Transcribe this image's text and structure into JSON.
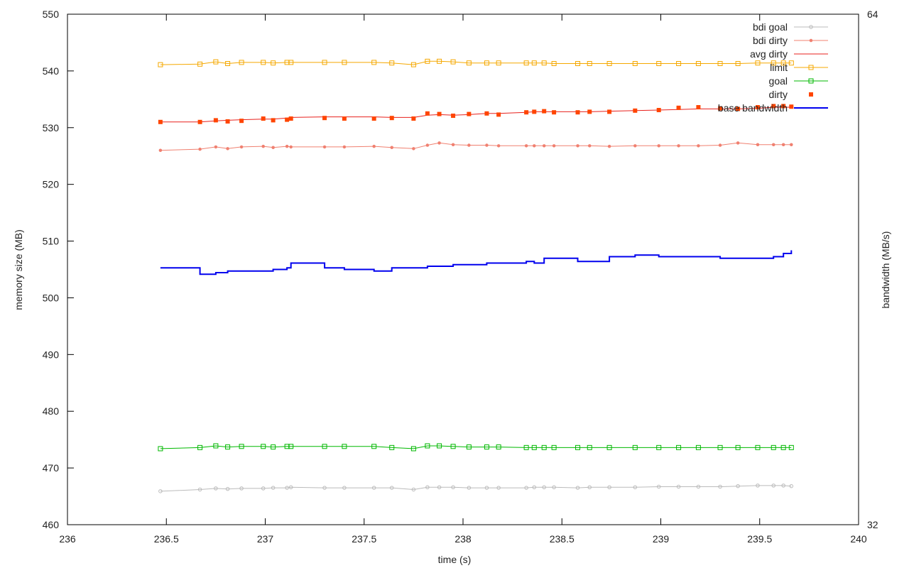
{
  "chart_data": {
    "type": "line",
    "xlabel": "time (s)",
    "ylabel": "memory size (MB)",
    "y2label": "bandwidth (MB/s)",
    "xlim": [
      236,
      240
    ],
    "ylim": [
      460,
      550
    ],
    "y2lim": [
      32,
      64
    ],
    "xticks": [
      "236",
      "236.5",
      "237",
      "237.5",
      "238",
      "238.5",
      "239",
      "239.5",
      "240"
    ],
    "yticks": [
      "460",
      "470",
      "480",
      "490",
      "500",
      "510",
      "520",
      "530",
      "540",
      "550"
    ],
    "y2ticks": [
      "32",
      "64"
    ],
    "grid": false,
    "legend_position": "top-right",
    "series": [
      {
        "name": "bdi goal",
        "color": "#bbbbbb",
        "marker": "circle-open",
        "x": [
          236.47,
          236.67,
          236.75,
          236.81,
          236.88,
          236.99,
          237.04,
          237.11,
          237.13,
          237.3,
          237.4,
          237.55,
          237.64,
          237.75,
          237.82,
          237.88,
          237.95,
          238.03,
          238.12,
          238.18,
          238.32,
          238.36,
          238.41,
          238.46,
          238.58,
          238.64,
          238.74,
          238.87,
          238.99,
          239.09,
          239.19,
          239.3,
          239.39,
          239.49,
          239.57,
          239.62,
          239.66
        ],
        "values": [
          465.9,
          466.2,
          466.4,
          466.3,
          466.4,
          466.4,
          466.5,
          466.5,
          466.6,
          466.5,
          466.5,
          466.5,
          466.5,
          466.2,
          466.6,
          466.6,
          466.6,
          466.5,
          466.5,
          466.5,
          466.5,
          466.6,
          466.6,
          466.6,
          466.5,
          466.6,
          466.6,
          466.6,
          466.7,
          466.7,
          466.7,
          466.7,
          466.8,
          466.9,
          466.9,
          466.9,
          466.8
        ]
      },
      {
        "name": "bdi dirty",
        "color": "#f08070",
        "marker": "circle-filled",
        "x": [
          236.47,
          236.67,
          236.75,
          236.81,
          236.88,
          236.99,
          237.04,
          237.11,
          237.13,
          237.3,
          237.4,
          237.55,
          237.64,
          237.75,
          237.82,
          237.88,
          237.95,
          238.03,
          238.12,
          238.18,
          238.32,
          238.36,
          238.41,
          238.46,
          238.58,
          238.64,
          238.74,
          238.87,
          238.99,
          239.09,
          239.19,
          239.3,
          239.39,
          239.49,
          239.57,
          239.62,
          239.66
        ],
        "values": [
          526.0,
          526.2,
          526.6,
          526.3,
          526.6,
          526.7,
          526.5,
          526.7,
          526.6,
          526.6,
          526.6,
          526.7,
          526.5,
          526.3,
          526.9,
          527.3,
          527.0,
          526.9,
          526.9,
          526.8,
          526.8,
          526.8,
          526.8,
          526.8,
          526.8,
          526.8,
          526.7,
          526.8,
          526.8,
          526.8,
          526.8,
          526.9,
          527.3,
          527.0,
          527.0,
          527.0,
          527.0
        ]
      },
      {
        "name": "avg dirty",
        "color": "#e8201c",
        "marker": "none",
        "x": [
          236.47,
          236.67,
          236.75,
          236.81,
          236.88,
          236.99,
          237.04,
          237.11,
          237.13,
          237.3,
          237.4,
          237.55,
          237.64,
          237.75,
          237.82,
          237.88,
          237.95,
          238.03,
          238.12,
          238.18,
          238.32,
          238.36,
          238.41,
          238.46,
          238.58,
          238.64,
          238.74,
          238.87,
          238.99,
          239.09,
          239.19,
          239.3,
          239.39,
          239.49,
          239.57,
          239.62,
          239.66
        ],
        "values": [
          531.0,
          531.0,
          531.2,
          531.3,
          531.4,
          531.5,
          531.5,
          531.7,
          531.8,
          531.9,
          531.9,
          531.9,
          531.8,
          531.8,
          532.2,
          532.3,
          532.2,
          532.3,
          532.5,
          532.5,
          532.7,
          532.8,
          532.8,
          532.8,
          532.8,
          532.8,
          532.9,
          533.0,
          533.1,
          533.2,
          533.3,
          533.3,
          533.3,
          533.4,
          533.6,
          533.6,
          533.6
        ]
      },
      {
        "name": "limit",
        "color": "#f5a800",
        "marker": "square-open",
        "x": [
          236.47,
          236.67,
          236.75,
          236.81,
          236.88,
          236.99,
          237.04,
          237.11,
          237.13,
          237.3,
          237.4,
          237.55,
          237.64,
          237.75,
          237.82,
          237.88,
          237.95,
          238.03,
          238.12,
          238.18,
          238.32,
          238.36,
          238.41,
          238.46,
          238.58,
          238.64,
          238.74,
          238.87,
          238.99,
          239.09,
          239.19,
          239.3,
          239.39,
          239.49,
          239.57,
          239.62,
          239.66
        ],
        "values": [
          541.1,
          541.2,
          541.6,
          541.3,
          541.5,
          541.5,
          541.4,
          541.5,
          541.5,
          541.5,
          541.5,
          541.5,
          541.4,
          541.1,
          541.7,
          541.7,
          541.6,
          541.4,
          541.4,
          541.4,
          541.4,
          541.4,
          541.4,
          541.3,
          541.3,
          541.3,
          541.3,
          541.3,
          541.3,
          541.3,
          541.3,
          541.3,
          541.3,
          541.4,
          541.4,
          541.4,
          541.4
        ]
      },
      {
        "name": "goal",
        "color": "#00b800",
        "marker": "square-open",
        "x": [
          236.47,
          236.67,
          236.75,
          236.81,
          236.88,
          236.99,
          237.04,
          237.11,
          237.13,
          237.3,
          237.4,
          237.55,
          237.64,
          237.75,
          237.82,
          237.88,
          237.95,
          238.03,
          238.12,
          238.18,
          238.32,
          238.36,
          238.41,
          238.46,
          238.58,
          238.64,
          238.74,
          238.87,
          238.99,
          239.09,
          239.19,
          239.3,
          239.39,
          239.49,
          239.57,
          239.62,
          239.66
        ],
        "values": [
          473.4,
          473.6,
          473.9,
          473.7,
          473.8,
          473.8,
          473.7,
          473.8,
          473.8,
          473.8,
          473.8,
          473.8,
          473.6,
          473.4,
          473.9,
          473.9,
          473.8,
          473.7,
          473.7,
          473.7,
          473.6,
          473.6,
          473.6,
          473.6,
          473.6,
          473.6,
          473.6,
          473.6,
          473.6,
          473.6,
          473.6,
          473.6,
          473.6,
          473.6,
          473.6,
          473.6,
          473.6
        ]
      },
      {
        "name": "dirty",
        "color": "#ff4500",
        "marker": "square-filled",
        "x": [
          236.47,
          236.67,
          236.75,
          236.81,
          236.88,
          236.99,
          237.04,
          237.11,
          237.13,
          237.3,
          237.4,
          237.55,
          237.64,
          237.75,
          237.82,
          237.88,
          237.95,
          238.03,
          238.12,
          238.18,
          238.32,
          238.36,
          238.41,
          238.46,
          238.58,
          238.64,
          238.74,
          238.87,
          238.99,
          239.09,
          239.19,
          239.3,
          239.39,
          239.49,
          239.57,
          239.62,
          239.66
        ],
        "values": [
          531.0,
          531.0,
          531.3,
          531.1,
          531.2,
          531.6,
          531.3,
          531.4,
          531.6,
          531.7,
          531.6,
          531.6,
          531.7,
          531.6,
          532.5,
          532.4,
          532.1,
          532.4,
          532.5,
          532.3,
          532.7,
          532.8,
          532.9,
          532.7,
          532.7,
          532.8,
          532.8,
          533.0,
          533.1,
          533.5,
          533.6,
          533.4,
          533.3,
          533.6,
          533.8,
          533.8,
          533.7
        ]
      },
      {
        "name": "base bandwidth",
        "color": "#0000ee",
        "marker": "none",
        "axis": "y2",
        "x": [
          236.47,
          236.67,
          236.75,
          236.81,
          236.88,
          236.99,
          237.04,
          237.11,
          237.13,
          237.3,
          237.4,
          237.55,
          237.64,
          237.75,
          237.82,
          237.88,
          237.95,
          238.03,
          238.12,
          238.18,
          238.32,
          238.36,
          238.41,
          238.46,
          238.58,
          238.64,
          238.74,
          238.87,
          238.99,
          239.09,
          239.19,
          239.3,
          239.39,
          239.49,
          239.57,
          239.62,
          239.66
        ],
        "values": [
          48.1,
          47.7,
          47.8,
          47.9,
          47.9,
          47.9,
          48.0,
          48.1,
          48.4,
          48.1,
          48.0,
          47.9,
          48.1,
          48.1,
          48.2,
          48.2,
          48.3,
          48.3,
          48.4,
          48.4,
          48.5,
          48.4,
          48.7,
          48.7,
          48.5,
          48.5,
          48.8,
          48.9,
          48.8,
          48.8,
          48.8,
          48.7,
          48.7,
          48.7,
          48.8,
          49.0,
          49.2
        ]
      }
    ]
  }
}
